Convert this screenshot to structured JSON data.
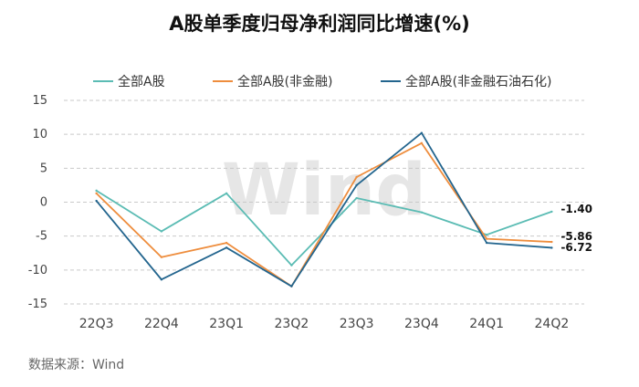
{
  "chart_data": {
    "type": "line",
    "title": "A股单季度归母净利润同比增速(%)",
    "categories": [
      "22Q3",
      "22Q4",
      "23Q1",
      "23Q2",
      "23Q3",
      "23Q4",
      "24Q1",
      "24Q2"
    ],
    "ylim": [
      -15,
      15
    ],
    "yticks": [
      15,
      10,
      5,
      0,
      -5,
      -10,
      -15
    ],
    "grid": "horizontal dashed",
    "legend_position": "top",
    "series": [
      {
        "name": "全部A股",
        "color": "#5bbcb4",
        "values": [
          1.7,
          -4.3,
          1.3,
          -9.3,
          0.6,
          -1.5,
          -4.8,
          -1.4
        ],
        "end_label": "-1.40"
      },
      {
        "name": "全部A股(非金融)",
        "color": "#ee8d3d",
        "values": [
          1.3,
          -8.1,
          -6.0,
          -12.4,
          3.7,
          8.7,
          -5.4,
          -5.86
        ],
        "end_label": "-5.86"
      },
      {
        "name": "全部A股(非金融石油石化)",
        "color": "#23658e",
        "values": [
          0.2,
          -11.4,
          -6.7,
          -12.4,
          2.5,
          10.2,
          -6.0,
          -6.72
        ],
        "end_label": "-6.72"
      }
    ]
  },
  "source": "数据来源：Wind",
  "watermark": "Wind"
}
